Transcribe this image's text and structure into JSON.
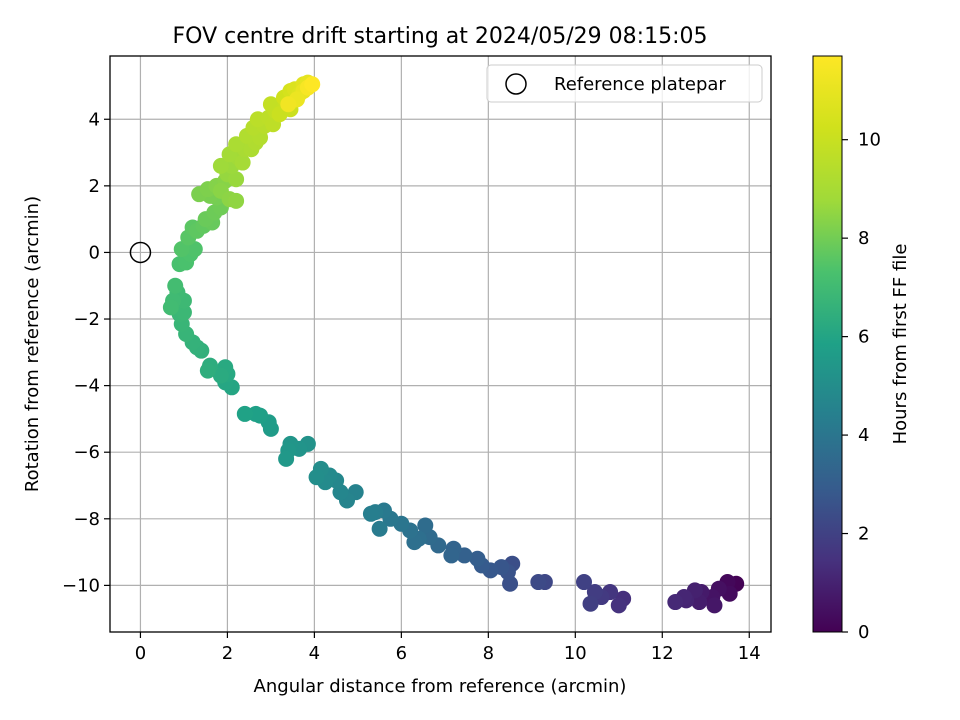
{
  "chart_data": {
    "type": "scatter",
    "title": "FOV centre drift starting at 2024/05/29 08:15:05",
    "xlabel": "Angular distance from reference (arcmin)",
    "ylabel": "Rotation from reference (arcmin)",
    "xlim": [
      -0.7,
      14.5
    ],
    "ylim": [
      -11.4,
      5.9
    ],
    "xticks": [
      0,
      2,
      4,
      6,
      8,
      10,
      12,
      14
    ],
    "yticks": [
      -10,
      -8,
      -6,
      -4,
      -2,
      0,
      2,
      4
    ],
    "xtick_labels": [
      "0",
      "2",
      "4",
      "6",
      "8",
      "10",
      "12",
      "14"
    ],
    "ytick_labels": [
      "−10",
      "−8",
      "−6",
      "−4",
      "−2",
      "0",
      "2",
      "4"
    ],
    "grid": true,
    "legend": {
      "position": "top-right",
      "entries": [
        "Reference platepar"
      ]
    },
    "reference_point": {
      "x": 0,
      "y": 0,
      "label": "Reference platepar"
    },
    "colorbar": {
      "label": "Hours from first FF file",
      "colormap": "viridis",
      "range": [
        0,
        11.7
      ],
      "ticks": [
        0,
        2,
        4,
        6,
        8,
        10
      ],
      "tick_labels": [
        "0",
        "2",
        "4",
        "6",
        "8",
        "10"
      ]
    },
    "series": [
      {
        "color_by": "hours",
        "points": [
          {
            "x": 13.7,
            "y": -9.95,
            "c": 0.05
          },
          {
            "x": 13.5,
            "y": -9.9,
            "c": 0.2
          },
          {
            "x": 13.55,
            "y": -10.25,
            "c": 0.3
          },
          {
            "x": 13.3,
            "y": -10.1,
            "c": 0.45
          },
          {
            "x": 13.15,
            "y": -10.35,
            "c": 0.55
          },
          {
            "x": 13.2,
            "y": -10.6,
            "c": 0.65
          },
          {
            "x": 12.9,
            "y": -10.2,
            "c": 0.75
          },
          {
            "x": 12.85,
            "y": -10.5,
            "c": 0.85
          },
          {
            "x": 12.75,
            "y": -10.15,
            "c": 0.95
          },
          {
            "x": 12.55,
            "y": -10.45,
            "c": 1.05
          },
          {
            "x": 12.5,
            "y": -10.35,
            "c": 1.1
          },
          {
            "x": 12.3,
            "y": -10.5,
            "c": 1.2
          },
          {
            "x": 11.1,
            "y": -10.4,
            "c": 1.4
          },
          {
            "x": 11.0,
            "y": -10.6,
            "c": 1.5
          },
          {
            "x": 10.8,
            "y": -10.2,
            "c": 1.6
          },
          {
            "x": 10.6,
            "y": -10.35,
            "c": 1.75
          },
          {
            "x": 10.45,
            "y": -10.2,
            "c": 1.85
          },
          {
            "x": 10.35,
            "y": -10.55,
            "c": 1.9
          },
          {
            "x": 10.2,
            "y": -9.9,
            "c": 2.0
          },
          {
            "x": 9.3,
            "y": -9.9,
            "c": 2.2
          },
          {
            "x": 9.15,
            "y": -9.9,
            "c": 2.3
          },
          {
            "x": 8.55,
            "y": -9.35,
            "c": 2.45
          },
          {
            "x": 8.5,
            "y": -9.95,
            "c": 2.5
          },
          {
            "x": 8.45,
            "y": -9.6,
            "c": 2.6
          },
          {
            "x": 8.3,
            "y": -9.45,
            "c": 2.7
          },
          {
            "x": 8.05,
            "y": -9.55,
            "c": 2.8
          },
          {
            "x": 7.85,
            "y": -9.4,
            "c": 2.9
          },
          {
            "x": 7.75,
            "y": -9.2,
            "c": 3.0
          },
          {
            "x": 7.45,
            "y": -9.1,
            "c": 3.15
          },
          {
            "x": 7.2,
            "y": -8.9,
            "c": 3.25
          },
          {
            "x": 7.15,
            "y": -9.1,
            "c": 3.3
          },
          {
            "x": 6.85,
            "y": -8.8,
            "c": 3.45
          },
          {
            "x": 6.65,
            "y": -8.55,
            "c": 3.55
          },
          {
            "x": 6.55,
            "y": -8.2,
            "c": 3.6
          },
          {
            "x": 6.4,
            "y": -8.6,
            "c": 3.7
          },
          {
            "x": 6.3,
            "y": -8.7,
            "c": 3.75
          },
          {
            "x": 6.2,
            "y": -8.35,
            "c": 3.85
          },
          {
            "x": 6.0,
            "y": -8.15,
            "c": 3.95
          },
          {
            "x": 5.75,
            "y": -8.0,
            "c": 4.05
          },
          {
            "x": 5.6,
            "y": -7.75,
            "c": 4.15
          },
          {
            "x": 5.5,
            "y": -8.3,
            "c": 4.2
          },
          {
            "x": 5.4,
            "y": -7.8,
            "c": 4.3
          },
          {
            "x": 5.3,
            "y": -7.85,
            "c": 4.35
          },
          {
            "x": 4.95,
            "y": -7.2,
            "c": 4.5
          },
          {
            "x": 4.75,
            "y": -7.45,
            "c": 4.6
          },
          {
            "x": 4.6,
            "y": -7.2,
            "c": 4.7
          },
          {
            "x": 4.5,
            "y": -6.85,
            "c": 4.75
          },
          {
            "x": 4.35,
            "y": -6.7,
            "c": 4.85
          },
          {
            "x": 4.25,
            "y": -6.9,
            "c": 4.9
          },
          {
            "x": 4.15,
            "y": -6.5,
            "c": 5.0
          },
          {
            "x": 4.05,
            "y": -6.75,
            "c": 5.05
          },
          {
            "x": 3.85,
            "y": -5.75,
            "c": 5.2
          },
          {
            "x": 3.65,
            "y": -5.9,
            "c": 5.3
          },
          {
            "x": 3.45,
            "y": -5.75,
            "c": 5.35
          },
          {
            "x": 3.4,
            "y": -5.95,
            "c": 5.4
          },
          {
            "x": 3.35,
            "y": -6.2,
            "c": 5.45
          },
          {
            "x": 3.0,
            "y": -5.3,
            "c": 5.6
          },
          {
            "x": 2.95,
            "y": -5.1,
            "c": 5.65
          },
          {
            "x": 2.75,
            "y": -4.9,
            "c": 5.75
          },
          {
            "x": 2.65,
            "y": -4.85,
            "c": 5.8
          },
          {
            "x": 2.4,
            "y": -4.85,
            "c": 5.9
          },
          {
            "x": 2.1,
            "y": -4.05,
            "c": 6.05
          },
          {
            "x": 1.95,
            "y": -3.9,
            "c": 6.1
          },
          {
            "x": 2.0,
            "y": -3.65,
            "c": 6.15
          },
          {
            "x": 1.95,
            "y": -3.45,
            "c": 6.2
          },
          {
            "x": 1.85,
            "y": -3.7,
            "c": 6.25
          },
          {
            "x": 1.6,
            "y": -3.4,
            "c": 6.35
          },
          {
            "x": 1.55,
            "y": -3.55,
            "c": 6.4
          },
          {
            "x": 1.4,
            "y": -2.95,
            "c": 6.5
          },
          {
            "x": 1.3,
            "y": -2.85,
            "c": 6.55
          },
          {
            "x": 1.2,
            "y": -2.7,
            "c": 6.6
          },
          {
            "x": 1.05,
            "y": -2.45,
            "c": 6.7
          },
          {
            "x": 0.95,
            "y": -2.15,
            "c": 6.75
          },
          {
            "x": 0.9,
            "y": -1.85,
            "c": 6.8
          },
          {
            "x": 1.0,
            "y": -1.8,
            "c": 6.85
          },
          {
            "x": 1.0,
            "y": -1.45,
            "c": 6.9
          },
          {
            "x": 0.85,
            "y": -1.2,
            "c": 6.95
          },
          {
            "x": 0.75,
            "y": -1.45,
            "c": 7.0
          },
          {
            "x": 0.7,
            "y": -1.65,
            "c": 7.05
          },
          {
            "x": 0.8,
            "y": -1.0,
            "c": 7.1
          },
          {
            "x": 0.9,
            "y": -0.35,
            "c": 7.25
          },
          {
            "x": 1.05,
            "y": -0.3,
            "c": 7.3
          },
          {
            "x": 1.15,
            "y": -0.05,
            "c": 7.35
          },
          {
            "x": 1.25,
            "y": 0.1,
            "c": 7.4
          },
          {
            "x": 0.95,
            "y": 0.1,
            "c": 7.45
          },
          {
            "x": 1.1,
            "y": 0.45,
            "c": 7.55
          },
          {
            "x": 1.2,
            "y": 0.75,
            "c": 7.6
          },
          {
            "x": 1.3,
            "y": 0.65,
            "c": 7.65
          },
          {
            "x": 1.45,
            "y": 0.8,
            "c": 7.7
          },
          {
            "x": 1.65,
            "y": 0.9,
            "c": 7.8
          },
          {
            "x": 1.5,
            "y": 1.0,
            "c": 7.85
          },
          {
            "x": 1.7,
            "y": 1.2,
            "c": 7.9
          },
          {
            "x": 1.85,
            "y": 1.35,
            "c": 7.95
          },
          {
            "x": 1.75,
            "y": 1.65,
            "c": 8.05
          },
          {
            "x": 1.6,
            "y": 1.7,
            "c": 8.1
          },
          {
            "x": 1.35,
            "y": 1.75,
            "c": 8.15
          },
          {
            "x": 1.55,
            "y": 1.9,
            "c": 8.2
          },
          {
            "x": 1.75,
            "y": 2.0,
            "c": 8.3
          },
          {
            "x": 1.95,
            "y": 2.15,
            "c": 8.35
          },
          {
            "x": 1.85,
            "y": 1.85,
            "c": 8.4
          },
          {
            "x": 2.05,
            "y": 1.6,
            "c": 8.45
          },
          {
            "x": 2.2,
            "y": 1.55,
            "c": 8.5
          },
          {
            "x": 2.0,
            "y": 2.35,
            "c": 8.6
          },
          {
            "x": 2.2,
            "y": 2.2,
            "c": 8.65
          },
          {
            "x": 2.1,
            "y": 2.6,
            "c": 8.7
          },
          {
            "x": 1.85,
            "y": 2.6,
            "c": 8.75
          },
          {
            "x": 2.25,
            "y": 2.85,
            "c": 8.85
          },
          {
            "x": 2.05,
            "y": 2.95,
            "c": 8.9
          },
          {
            "x": 2.35,
            "y": 2.7,
            "c": 8.95
          },
          {
            "x": 2.4,
            "y": 3.1,
            "c": 9.05
          },
          {
            "x": 2.2,
            "y": 3.25,
            "c": 9.1
          },
          {
            "x": 2.55,
            "y": 3.1,
            "c": 9.15
          },
          {
            "x": 2.65,
            "y": 3.3,
            "c": 9.25
          },
          {
            "x": 2.45,
            "y": 3.5,
            "c": 9.3
          },
          {
            "x": 2.75,
            "y": 3.45,
            "c": 9.35
          },
          {
            "x": 2.6,
            "y": 3.75,
            "c": 9.45
          },
          {
            "x": 2.85,
            "y": 3.8,
            "c": 9.5
          },
          {
            "x": 2.7,
            "y": 4.0,
            "c": 9.6
          },
          {
            "x": 2.95,
            "y": 4.05,
            "c": 9.65
          },
          {
            "x": 3.05,
            "y": 3.85,
            "c": 9.7
          },
          {
            "x": 3.1,
            "y": 4.25,
            "c": 9.8
          },
          {
            "x": 3.0,
            "y": 4.45,
            "c": 9.85
          },
          {
            "x": 3.25,
            "y": 4.25,
            "c": 9.9
          },
          {
            "x": 3.35,
            "y": 4.5,
            "c": 10.0
          },
          {
            "x": 3.2,
            "y": 4.15,
            "c": 10.05
          },
          {
            "x": 3.45,
            "y": 4.3,
            "c": 10.1
          },
          {
            "x": 3.5,
            "y": 4.55,
            "c": 10.2
          },
          {
            "x": 3.3,
            "y": 4.65,
            "c": 10.25
          },
          {
            "x": 3.6,
            "y": 4.7,
            "c": 10.35
          },
          {
            "x": 3.45,
            "y": 4.85,
            "c": 10.4
          },
          {
            "x": 3.7,
            "y": 4.95,
            "c": 10.5
          },
          {
            "x": 3.55,
            "y": 4.9,
            "c": 10.6
          },
          {
            "x": 3.65,
            "y": 4.75,
            "c": 10.7
          },
          {
            "x": 3.75,
            "y": 5.05,
            "c": 10.8
          },
          {
            "x": 3.85,
            "y": 5.1,
            "c": 10.95
          },
          {
            "x": 3.75,
            "y": 4.85,
            "c": 11.05
          },
          {
            "x": 3.6,
            "y": 4.6,
            "c": 11.15
          },
          {
            "x": 3.4,
            "y": 4.45,
            "c": 11.3
          },
          {
            "x": 3.85,
            "y": 4.95,
            "c": 11.5
          },
          {
            "x": 3.95,
            "y": 5.05,
            "c": 11.7
          }
        ]
      }
    ]
  }
}
